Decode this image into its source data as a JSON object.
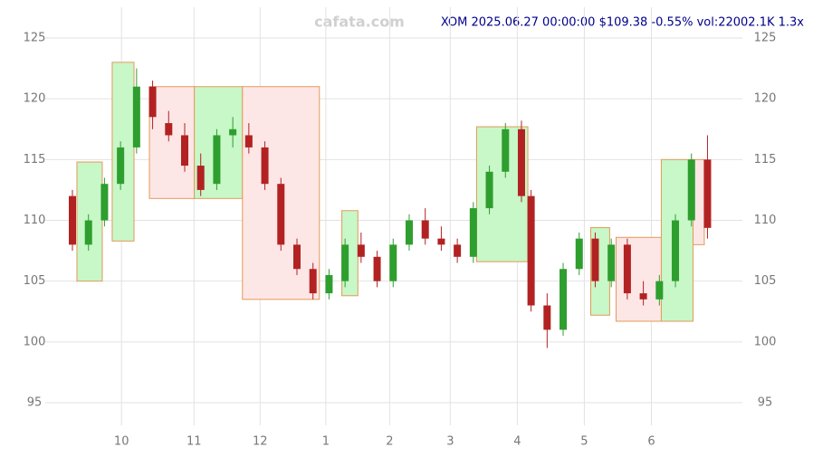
{
  "chart_data": {
    "type": "candlestick",
    "watermark": "cafata.com",
    "title": "XOM 2025.06.27 00:00:00 $109.38 -0.55% vol:22002.1K 1.3x",
    "up_color": "#2e9e2e",
    "down_color": "#b22222",
    "grid": true,
    "xlim": [
      0,
      199
    ],
    "ylim": [
      94,
      126
    ],
    "yticks": [
      95,
      100,
      105,
      110,
      115,
      120,
      125
    ],
    "xticks": [
      {
        "value": 15.3,
        "label": "10"
      },
      {
        "value": 37.9,
        "label": "11"
      },
      {
        "value": 58.5,
        "label": "12"
      },
      {
        "value": 79,
        "label": "1"
      },
      {
        "value": 98.9,
        "label": "2"
      },
      {
        "value": 117.8,
        "label": "3"
      },
      {
        "value": 138.7,
        "label": "4"
      },
      {
        "value": 159.6,
        "label": "5"
      },
      {
        "value": 180.5,
        "label": "6"
      }
    ],
    "x": [
      0,
      5,
      10,
      15,
      20,
      25,
      30,
      35,
      40,
      45,
      50,
      55,
      60,
      65,
      70,
      75,
      80,
      85,
      90,
      95,
      100,
      105,
      110,
      115,
      120,
      125,
      130,
      135,
      140,
      143,
      148,
      153,
      158,
      163,
      168,
      173,
      178,
      183,
      188,
      193,
      198
    ],
    "open": [
      112,
      108,
      110,
      113,
      116,
      121,
      118,
      117,
      114.5,
      113,
      117,
      117,
      116,
      113,
      108,
      106,
      104,
      105,
      108,
      107,
      105,
      108,
      110,
      108.5,
      108,
      107,
      111,
      114,
      117.5,
      112,
      103,
      101,
      106,
      108.5,
      105,
      108,
      104,
      103.5,
      105,
      110,
      115
    ],
    "high": [
      112.5,
      110.5,
      113.5,
      116.5,
      122.5,
      121.5,
      119,
      118,
      115.5,
      117.5,
      118.5,
      118,
      116.5,
      113.5,
      108.5,
      106.5,
      106,
      108.5,
      109,
      107.5,
      108.5,
      110.5,
      111,
      109.5,
      108.5,
      111.5,
      114.5,
      118,
      118.2,
      112.5,
      104,
      106.5,
      109,
      109,
      108.5,
      108.5,
      105,
      105.5,
      110.5,
      115.5,
      117
    ],
    "low": [
      107.5,
      107.5,
      109.5,
      112.5,
      115.5,
      117.5,
      116.5,
      114,
      112,
      112.5,
      116,
      115.5,
      112.5,
      107.5,
      105.5,
      103.5,
      103.5,
      104.5,
      106.5,
      104.5,
      104.5,
      107.5,
      108,
      107.5,
      106.5,
      106.5,
      110.5,
      113.5,
      111.5,
      102.5,
      99.5,
      100.5,
      105.5,
      104.5,
      104.5,
      103.5,
      103,
      103,
      104.5,
      109.5,
      108.5
    ],
    "close": [
      108,
      110,
      113,
      116,
      121,
      118.5,
      117,
      114.5,
      112.5,
      117,
      117.5,
      116,
      113,
      108,
      106,
      104,
      105.5,
      108,
      107,
      105,
      108,
      110,
      108.5,
      108,
      107,
      111,
      114,
      117.5,
      112,
      103,
      101,
      106,
      108.5,
      105,
      108,
      104,
      103.5,
      105,
      110,
      115,
      109.38
    ],
    "zones": [
      {
        "x": [
          1.4,
          9.3
        ],
        "y": [
          105,
          114.8
        ],
        "color": "#c8f7c8"
      },
      {
        "x": [
          12.4,
          19.2
        ],
        "y": [
          108.3,
          123
        ],
        "color": "#c8f7c8"
      },
      {
        "x": [
          24,
          38
        ],
        "y": [
          111.8,
          121
        ],
        "color": "#fde6e6"
      },
      {
        "x": [
          38,
          53
        ],
        "y": [
          111.8,
          121
        ],
        "color": "#c8f7c8"
      },
      {
        "x": [
          53,
          77
        ],
        "y": [
          103.5,
          121
        ],
        "color": "#fde6e6"
      },
      {
        "x": [
          84,
          89
        ],
        "y": [
          103.8,
          110.8
        ],
        "color": "#c8f7c8"
      },
      {
        "x": [
          126,
          142
        ],
        "y": [
          106.6,
          117.7
        ],
        "color": "#c8f7c8"
      },
      {
        "x": [
          161.6,
          167.5
        ],
        "y": [
          102.2,
          109.4
        ],
        "color": "#c8f7c8"
      },
      {
        "x": [
          169.5,
          183.6
        ],
        "y": [
          101.7,
          108.6
        ],
        "color": "#fde6e6"
      },
      {
        "x": [
          183.6,
          193.5
        ],
        "y": [
          101.7,
          115
        ],
        "color": "#c8f7c8"
      },
      {
        "x": [
          193.5,
          197
        ],
        "y": [
          108,
          115
        ],
        "color": "#fde6e6"
      }
    ]
  }
}
